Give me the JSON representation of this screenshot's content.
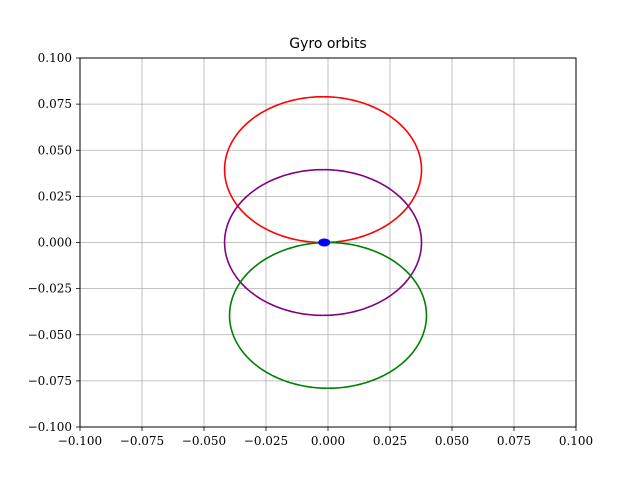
{
  "chart_data": {
    "type": "line",
    "title": "Gyro orbits",
    "xlabel": "",
    "ylabel": "",
    "xlim": [
      -0.1,
      0.1
    ],
    "ylim": [
      -0.1,
      0.1
    ],
    "xticks": [
      "−0.100",
      "−0.075",
      "−0.050",
      "−0.025",
      "0.000",
      "0.025",
      "0.050",
      "0.075",
      "0.100"
    ],
    "yticks": [
      "−0.100",
      "−0.075",
      "−0.050",
      "−0.025",
      "0.000",
      "0.025",
      "0.050",
      "0.075",
      "0.100"
    ],
    "grid": true,
    "series": [
      {
        "color": "#ff0000",
        "shape": "ellipse",
        "center": [
          -0.002,
          0.0395
        ],
        "radius": [
          0.0397,
          0.0395
        ]
      },
      {
        "color": "#800080",
        "shape": "ellipse",
        "center": [
          -0.002,
          0.0
        ],
        "radius": [
          0.0397,
          0.0395
        ]
      },
      {
        "color": "#008000",
        "shape": "ellipse",
        "center": [
          0.0,
          -0.0395
        ],
        "radius": [
          0.0397,
          0.0395
        ]
      },
      {
        "color": "#0000ff",
        "shape": "marker",
        "center": [
          -0.0015,
          0.0
        ]
      }
    ]
  }
}
